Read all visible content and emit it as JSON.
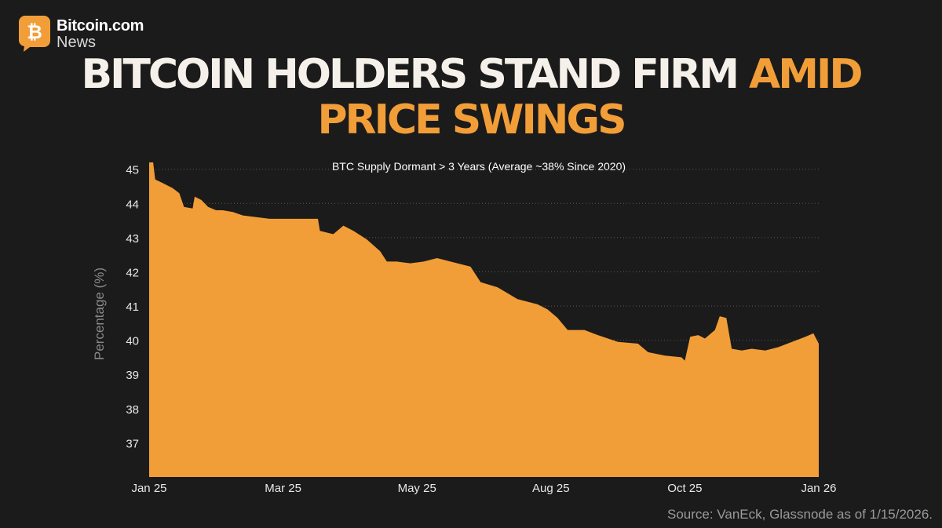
{
  "brand": {
    "name": "Bitcoin.com",
    "sub": "News",
    "icon": "bitcoin-logo-icon",
    "icon_glyph": "₿",
    "color": "#f29e38"
  },
  "headline": {
    "part1": "BITCOIN HOLDERS STAND FIRM ",
    "part2": "AMID",
    "part3": "PRICE SWINGS"
  },
  "colors": {
    "background": "#1b1b1b",
    "accent": "#f29e38",
    "headline": "#f5f1ea",
    "grid": "#5a5a5a",
    "axis_text": "#e8e8e8",
    "ylabel": "#8a8a8a"
  },
  "source": "Source: VanEck, Glassnode as of 1/15/2026.",
  "chart_data": {
    "type": "area",
    "title": "BTC Supply Dormant > 3 Years (Average ~38% Since 2020)",
    "xlabel": "",
    "ylabel": "Percentage (%)",
    "ylim": [
      36,
      45.2
    ],
    "yticks": [
      37,
      38,
      39,
      40,
      41,
      42,
      43,
      44,
      45
    ],
    "xlim": [
      0,
      1
    ],
    "xticks": [
      {
        "label": "Jan 25",
        "x": 0.0
      },
      {
        "label": "Mar 25",
        "x": 0.2
      },
      {
        "label": "May 25",
        "x": 0.4
      },
      {
        "label": "Aug 25",
        "x": 0.6
      },
      {
        "label": "Oct 25",
        "x": 0.8
      },
      {
        "label": "Jan 26",
        "x": 1.0
      }
    ],
    "grid": "horizontal-dotted",
    "legend": "none",
    "series": [
      {
        "values": [
          [
            0.0,
            45.3
          ],
          [
            0.006,
            45.25
          ],
          [
            0.009,
            44.7
          ],
          [
            0.02,
            44.6
          ],
          [
            0.035,
            44.45
          ],
          [
            0.045,
            44.3
          ],
          [
            0.052,
            43.9
          ],
          [
            0.065,
            43.85
          ],
          [
            0.068,
            44.2
          ],
          [
            0.078,
            44.1
          ],
          [
            0.088,
            43.9
          ],
          [
            0.1,
            43.8
          ],
          [
            0.11,
            43.8
          ],
          [
            0.125,
            43.75
          ],
          [
            0.14,
            43.65
          ],
          [
            0.16,
            43.6
          ],
          [
            0.18,
            43.55
          ],
          [
            0.2,
            43.55
          ],
          [
            0.235,
            43.55
          ],
          [
            0.252,
            43.55
          ],
          [
            0.255,
            43.2
          ],
          [
            0.275,
            43.1
          ],
          [
            0.29,
            43.35
          ],
          [
            0.305,
            43.2
          ],
          [
            0.325,
            42.95
          ],
          [
            0.345,
            42.6
          ],
          [
            0.355,
            42.3
          ],
          [
            0.37,
            42.3
          ],
          [
            0.39,
            42.25
          ],
          [
            0.41,
            42.3
          ],
          [
            0.43,
            42.4
          ],
          [
            0.45,
            42.3
          ],
          [
            0.48,
            42.15
          ],
          [
            0.495,
            41.7
          ],
          [
            0.52,
            41.55
          ],
          [
            0.55,
            41.2
          ],
          [
            0.58,
            41.05
          ],
          [
            0.595,
            40.9
          ],
          [
            0.61,
            40.65
          ],
          [
            0.625,
            40.3
          ],
          [
            0.65,
            40.3
          ],
          [
            0.67,
            40.15
          ],
          [
            0.7,
            39.95
          ],
          [
            0.73,
            39.9
          ],
          [
            0.745,
            39.65
          ],
          [
            0.77,
            39.55
          ],
          [
            0.795,
            39.5
          ],
          [
            0.8,
            39.4
          ],
          [
            0.808,
            40.1
          ],
          [
            0.82,
            40.15
          ],
          [
            0.83,
            40.05
          ],
          [
            0.845,
            40.3
          ],
          [
            0.852,
            40.7
          ],
          [
            0.862,
            40.65
          ],
          [
            0.87,
            39.75
          ],
          [
            0.885,
            39.7
          ],
          [
            0.9,
            39.75
          ],
          [
            0.92,
            39.7
          ],
          [
            0.94,
            39.8
          ],
          [
            0.96,
            39.95
          ],
          [
            0.98,
            40.1
          ],
          [
            0.992,
            40.2
          ],
          [
            0.996,
            40.05
          ],
          [
            1.0,
            39.9
          ]
        ]
      }
    ]
  }
}
